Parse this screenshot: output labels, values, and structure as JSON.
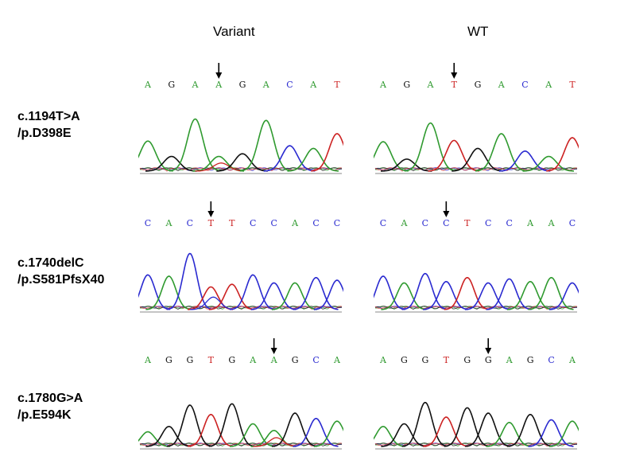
{
  "headers": {
    "variant": "Variant",
    "wt": "WT"
  },
  "colors": {
    "A": "#2f9a2f",
    "C": "#2a2ad0",
    "G": "#111111",
    "T": "#cc2222"
  },
  "rows": [
    {
      "label_line1": "c.1194T>A",
      "label_line2": "/p.D398E",
      "variant": {
        "bases": [
          "A",
          "G",
          "A",
          "A",
          "G",
          "A",
          "C",
          "A",
          "T"
        ],
        "highlight": 3,
        "peaks": [
          0.45,
          0.22,
          0.78,
          0.22,
          0.26,
          0.76,
          0.38,
          0.34,
          0.56
        ]
      },
      "wt": {
        "bases": [
          "A",
          "G",
          "A",
          "T",
          "G",
          "A",
          "C",
          "A",
          "T"
        ],
        "highlight": 3,
        "peaks": [
          0.44,
          0.18,
          0.72,
          0.46,
          0.34,
          0.56,
          0.3,
          0.22,
          0.5
        ]
      }
    },
    {
      "label_line1": "c.1740delC",
      "label_line2": "/p.S581PfsX40",
      "variant": {
        "bases": [
          "C",
          "A",
          "C",
          "T",
          "T",
          "C",
          "C",
          "A",
          "C",
          "C"
        ],
        "highlight": 3,
        "peaks": [
          0.52,
          0.5,
          0.84,
          0.34,
          0.38,
          0.52,
          0.4,
          0.4,
          0.48,
          0.44
        ]
      },
      "wt": {
        "bases": [
          "C",
          "A",
          "C",
          "C",
          "T",
          "C",
          "C",
          "A",
          "A",
          "C"
        ],
        "highlight": 3,
        "peaks": [
          0.5,
          0.4,
          0.54,
          0.42,
          0.48,
          0.4,
          0.46,
          0.42,
          0.48,
          0.4
        ]
      }
    },
    {
      "label_line1": "c.1780G>A",
      "label_line2": "/p.E594K",
      "variant": {
        "bases": [
          "A",
          "G",
          "G",
          "T",
          "G",
          "A",
          "A",
          "G",
          "C",
          "A"
        ],
        "highlight": 6,
        "peaks": [
          0.22,
          0.3,
          0.62,
          0.48,
          0.64,
          0.34,
          0.24,
          0.5,
          0.42,
          0.38
        ]
      },
      "wt": {
        "bases": [
          "A",
          "G",
          "G",
          "T",
          "G",
          "G",
          "A",
          "G",
          "C",
          "A"
        ],
        "highlight": 5,
        "peaks": [
          0.3,
          0.34,
          0.66,
          0.44,
          0.58,
          0.5,
          0.36,
          0.48,
          0.4,
          0.38
        ]
      }
    }
  ]
}
